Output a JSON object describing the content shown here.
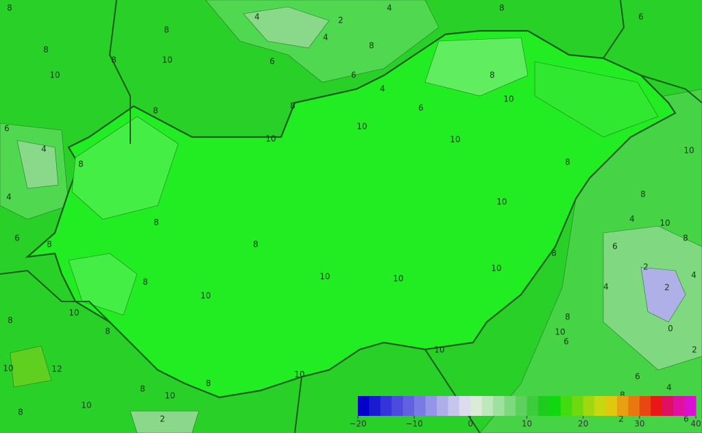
{
  "contour_labels": [
    8,
    4,
    2,
    4,
    8,
    6,
    8,
    8,
    10,
    10,
    8,
    4,
    8,
    6,
    6,
    4,
    8,
    10,
    6,
    8,
    8,
    6,
    10,
    10,
    10,
    4,
    8,
    8,
    10,
    4,
    10,
    8,
    8,
    4,
    10,
    6,
    8,
    8,
    6,
    8,
    8,
    2,
    4,
    10,
    8,
    10,
    10,
    4,
    2,
    10,
    10,
    8,
    8,
    8,
    10,
    0,
    6,
    2,
    10,
    12,
    10,
    10,
    6,
    8,
    10,
    8,
    4,
    10,
    8,
    2,
    8,
    2,
    6
  ],
  "colorbar": {
    "range": [
      -20,
      40
    ],
    "ticks": [
      {
        "value": -20,
        "label": "−20"
      },
      {
        "value": -10,
        "label": "−10"
      },
      0,
      10,
      20,
      30,
      40
    ],
    "colors": [
      "#0000c8",
      "#1a1ad2",
      "#3434d8",
      "#4c4cdc",
      "#6262e0",
      "#7a7ae4",
      "#9494e8",
      "#aeaee8",
      "#c6c6ec",
      "#dcdcee",
      "#d8ecd8",
      "#bce8bc",
      "#9ee09e",
      "#7ed87e",
      "#5ed05e",
      "#3ccc3c",
      "#1ecc1e",
      "#10d810",
      "#40dc10",
      "#70d810",
      "#a0d810",
      "#c8d810",
      "#e0c810",
      "#e8a010",
      "#e87810",
      "#e84810",
      "#e81818",
      "#e01060",
      "#e010a0",
      "#d810d0"
    ]
  }
}
